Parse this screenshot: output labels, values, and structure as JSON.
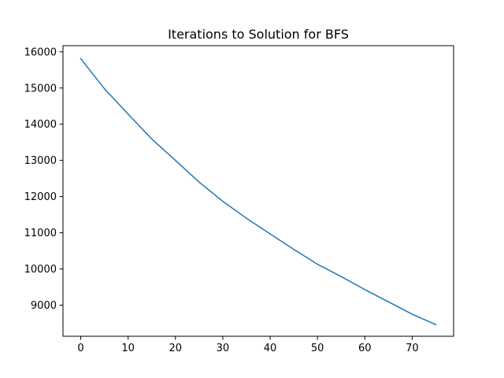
{
  "chart_data": {
    "type": "line",
    "title": "Iterations to Solution for BFS",
    "xlabel": "",
    "ylabel": "",
    "xlim": [
      -3.75,
      78.75
    ],
    "ylim": [
      8140,
      16170
    ],
    "x_ticks": [
      0,
      10,
      20,
      30,
      40,
      50,
      60,
      70
    ],
    "y_ticks": [
      9000,
      10000,
      11000,
      12000,
      13000,
      14000,
      15000,
      16000
    ],
    "grid": false,
    "series": [
      {
        "color": "#1f77b4",
        "x": [
          0,
          5,
          10,
          15,
          20,
          25,
          30,
          35,
          40,
          45,
          50,
          55,
          60,
          65,
          70,
          75
        ],
        "y": [
          15810,
          14980,
          14280,
          13590,
          13000,
          12400,
          11870,
          11400,
          10970,
          10540,
          10130,
          9790,
          9430,
          9090,
          8750,
          8460
        ]
      }
    ]
  }
}
